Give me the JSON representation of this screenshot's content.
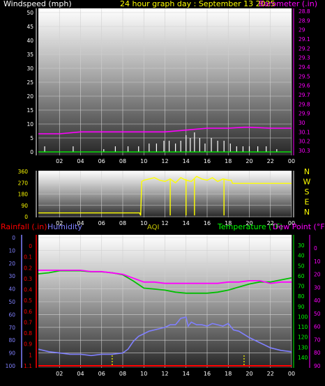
{
  "header": {
    "left_label": "Windspeed (mph)",
    "center_label": "24 hour graph day : September 13 2025",
    "right_label": "Barometer (.in)"
  },
  "mid_header": {
    "rainfall_label": "Rainfall (.in)",
    "humidity_label": "Humidity",
    "aqi_label": "AQI",
    "temperature_label": "Temperature (°F)",
    "dewpoint_label": "Dew Point (°F)"
  },
  "colors": {
    "windspeed": "#ffffff",
    "gust": "#00ff00",
    "barometer": "#ff00ff",
    "wind_dir": "#ffff00",
    "rainfall": "#ff0000",
    "humidity": "#8080ff",
    "temperature": "#00c000",
    "dewpoint": "#ff00ff",
    "aqi": "#ffff00"
  },
  "chart_data": [
    {
      "type": "line",
      "name": "wind-barometer",
      "x_ticks": [
        "02",
        "04",
        "06",
        "08",
        "10",
        "12",
        "14",
        "16",
        "18",
        "20",
        "22",
        "00"
      ],
      "left_axis": {
        "label": "Windspeed (mph)",
        "ticks": [
          "0",
          "5",
          "10",
          "15",
          "20",
          "25",
          "30",
          "35",
          "40",
          "45",
          "50"
        ],
        "ylim": [
          0,
          50
        ]
      },
      "right_axis": {
        "label": "Barometer (.in)",
        "ticks": [
          "28.8",
          "28.9",
          "29",
          "29.1",
          "29.2",
          "29.3",
          "29.4",
          "29.5",
          "29.6",
          "29.7",
          "29.8",
          "29.9",
          "30",
          "30.1",
          "30.2",
          "30.3"
        ],
        "ylim": [
          28.75,
          30.35
        ]
      },
      "series": [
        {
          "name": "Barometer (.in)",
          "axis": "right",
          "x": [
            0,
            2,
            4,
            6,
            8,
            10,
            12,
            14,
            16,
            18,
            19.5,
            20,
            22,
            24
          ],
          "values": [
            30.12,
            30.12,
            30.1,
            30.1,
            30.1,
            30.1,
            30.1,
            30.08,
            30.06,
            30.06,
            30.05,
            30.05,
            30.06,
            30.06
          ]
        },
        {
          "name": "Windspeed (mph)",
          "axis": "left",
          "x": [
            0.6,
            3.3,
            6.2,
            7.3,
            8.5,
            9.5,
            10.5,
            11.2,
            11.9,
            12.4,
            13,
            13.5,
            14,
            14.4,
            14.8,
            15.3,
            15.8,
            16.4,
            17,
            17.6,
            18.2,
            18.8,
            19.4,
            20,
            20.8,
            21.6,
            22.6
          ],
          "values": [
            2,
            2,
            1,
            2,
            2,
            2,
            3,
            3,
            4,
            4,
            3,
            4,
            6,
            5,
            7,
            5,
            3,
            5,
            4,
            4,
            3,
            2,
            2,
            2,
            2,
            2,
            1
          ]
        }
      ]
    },
    {
      "type": "line",
      "name": "wind-direction",
      "x_ticks": [
        "02",
        "04",
        "06",
        "08",
        "10",
        "12",
        "14",
        "16",
        "18",
        "20",
        "22",
        "00"
      ],
      "left_axis": {
        "ticks": [
          "0",
          "90",
          "180",
          "270",
          "360"
        ],
        "ylim": [
          0,
          360
        ]
      },
      "right_labels": [
        "N",
        "W",
        "S",
        "E",
        "N"
      ],
      "series": [
        {
          "name": "Wind Direction",
          "x": [
            0,
            2,
            4,
            6,
            8,
            9.6,
            9.7,
            9.8,
            10,
            10.5,
            11,
            11.5,
            12,
            12.5,
            13,
            13.5,
            14,
            14.5,
            15,
            15.5,
            16,
            16.5,
            17,
            17.5,
            18,
            18.3,
            18.4,
            20,
            22,
            24
          ],
          "values": [
            30,
            30,
            30,
            30,
            30,
            30,
            10,
            280,
            290,
            300,
            310,
            290,
            280,
            300,
            270,
            310,
            290,
            280,
            320,
            300,
            290,
            310,
            280,
            300,
            290,
            290,
            265,
            265,
            265,
            265
          ]
        }
      ]
    },
    {
      "type": "line",
      "name": "temp-humidity",
      "x_ticks": [
        "02",
        "04",
        "06",
        "08",
        "10",
        "12",
        "14",
        "16",
        "18",
        "20",
        "22",
        "00"
      ],
      "rain_axis": {
        "label": "Rainfall (.in)",
        "ticks": [
          "0",
          "0.1",
          "0.2",
          "0.3",
          "0.4",
          "0.5",
          "0.6",
          "0.7",
          "0.8",
          "0.9",
          "1",
          "1.1"
        ],
        "ylim": [
          0,
          1.15
        ]
      },
      "humidity_axis": {
        "label": "Humidity",
        "ticks": [
          "0",
          "10",
          "20",
          "30",
          "40",
          "50",
          "60",
          "70",
          "80",
          "90",
          "100"
        ],
        "ylim": [
          0,
          105
        ]
      },
      "temp_axis": {
        "label": "Temperature (°F)",
        "ticks": [
          "30",
          "40",
          "50",
          "60",
          "70",
          "80",
          "90",
          "100",
          "110",
          "120",
          "130",
          "140"
        ],
        "ylim": [
          25,
          145
        ]
      },
      "dew_axis": {
        "label": "Dew Point (°F)",
        "ticks": [
          "0",
          "10",
          "20",
          "30",
          "40",
          "50",
          "60",
          "70",
          "80",
          "90"
        ],
        "ylim": [
          0,
          95
        ]
      },
      "series": [
        {
          "name": "Humidity",
          "axis": "humidity",
          "x": [
            0,
            1,
            2,
            3,
            4,
            5,
            6,
            7,
            8,
            8.5,
            9,
            9.5,
            10,
            10.5,
            11,
            11.5,
            12,
            12.5,
            13,
            13.5,
            14,
            14.2,
            14.5,
            15,
            15.5,
            16,
            16.5,
            17,
            17.5,
            18,
            18.5,
            19,
            20,
            21,
            22,
            23,
            24
          ],
          "values": [
            87,
            89,
            90,
            91,
            91,
            92,
            91,
            91,
            90,
            87,
            81,
            77,
            75,
            73,
            72,
            71,
            70,
            68,
            68,
            63,
            62,
            69,
            66,
            68,
            68,
            69,
            67,
            68,
            69,
            67,
            72,
            73,
            78,
            82,
            86,
            88,
            89
          ]
        },
        {
          "name": "Temperature (°F)",
          "axis": "temp",
          "x": [
            0,
            1,
            2,
            3,
            4,
            5,
            6,
            7,
            8,
            9,
            10,
            11,
            12,
            13,
            14,
            15,
            16,
            17,
            18,
            19,
            20,
            21,
            22,
            23,
            24
          ],
          "values": [
            58,
            57,
            55,
            55,
            55,
            56,
            56,
            57,
            59,
            65,
            72,
            73,
            74,
            76,
            77,
            77,
            77,
            76,
            74,
            71,
            68,
            66,
            66,
            64,
            62
          ]
        },
        {
          "name": "Dew Point (°F)",
          "axis": "dew",
          "x": [
            0,
            1,
            2,
            3,
            4,
            5,
            6,
            7,
            8,
            9,
            10,
            11,
            12,
            13,
            14,
            15,
            16,
            17,
            18,
            19,
            20,
            21,
            22,
            23,
            24
          ],
          "values": [
            17,
            17,
            17,
            17,
            17,
            18,
            18,
            19,
            20,
            23,
            26,
            26,
            27,
            27,
            27,
            27,
            27,
            27,
            26,
            26,
            25,
            25,
            27,
            26,
            26
          ]
        },
        {
          "name": "Rainfall (.in)",
          "axis": "rain",
          "x": [
            0,
            24
          ],
          "values": [
            0,
            0
          ]
        }
      ],
      "aqi_marks_x": [
        7,
        19.5
      ]
    }
  ]
}
